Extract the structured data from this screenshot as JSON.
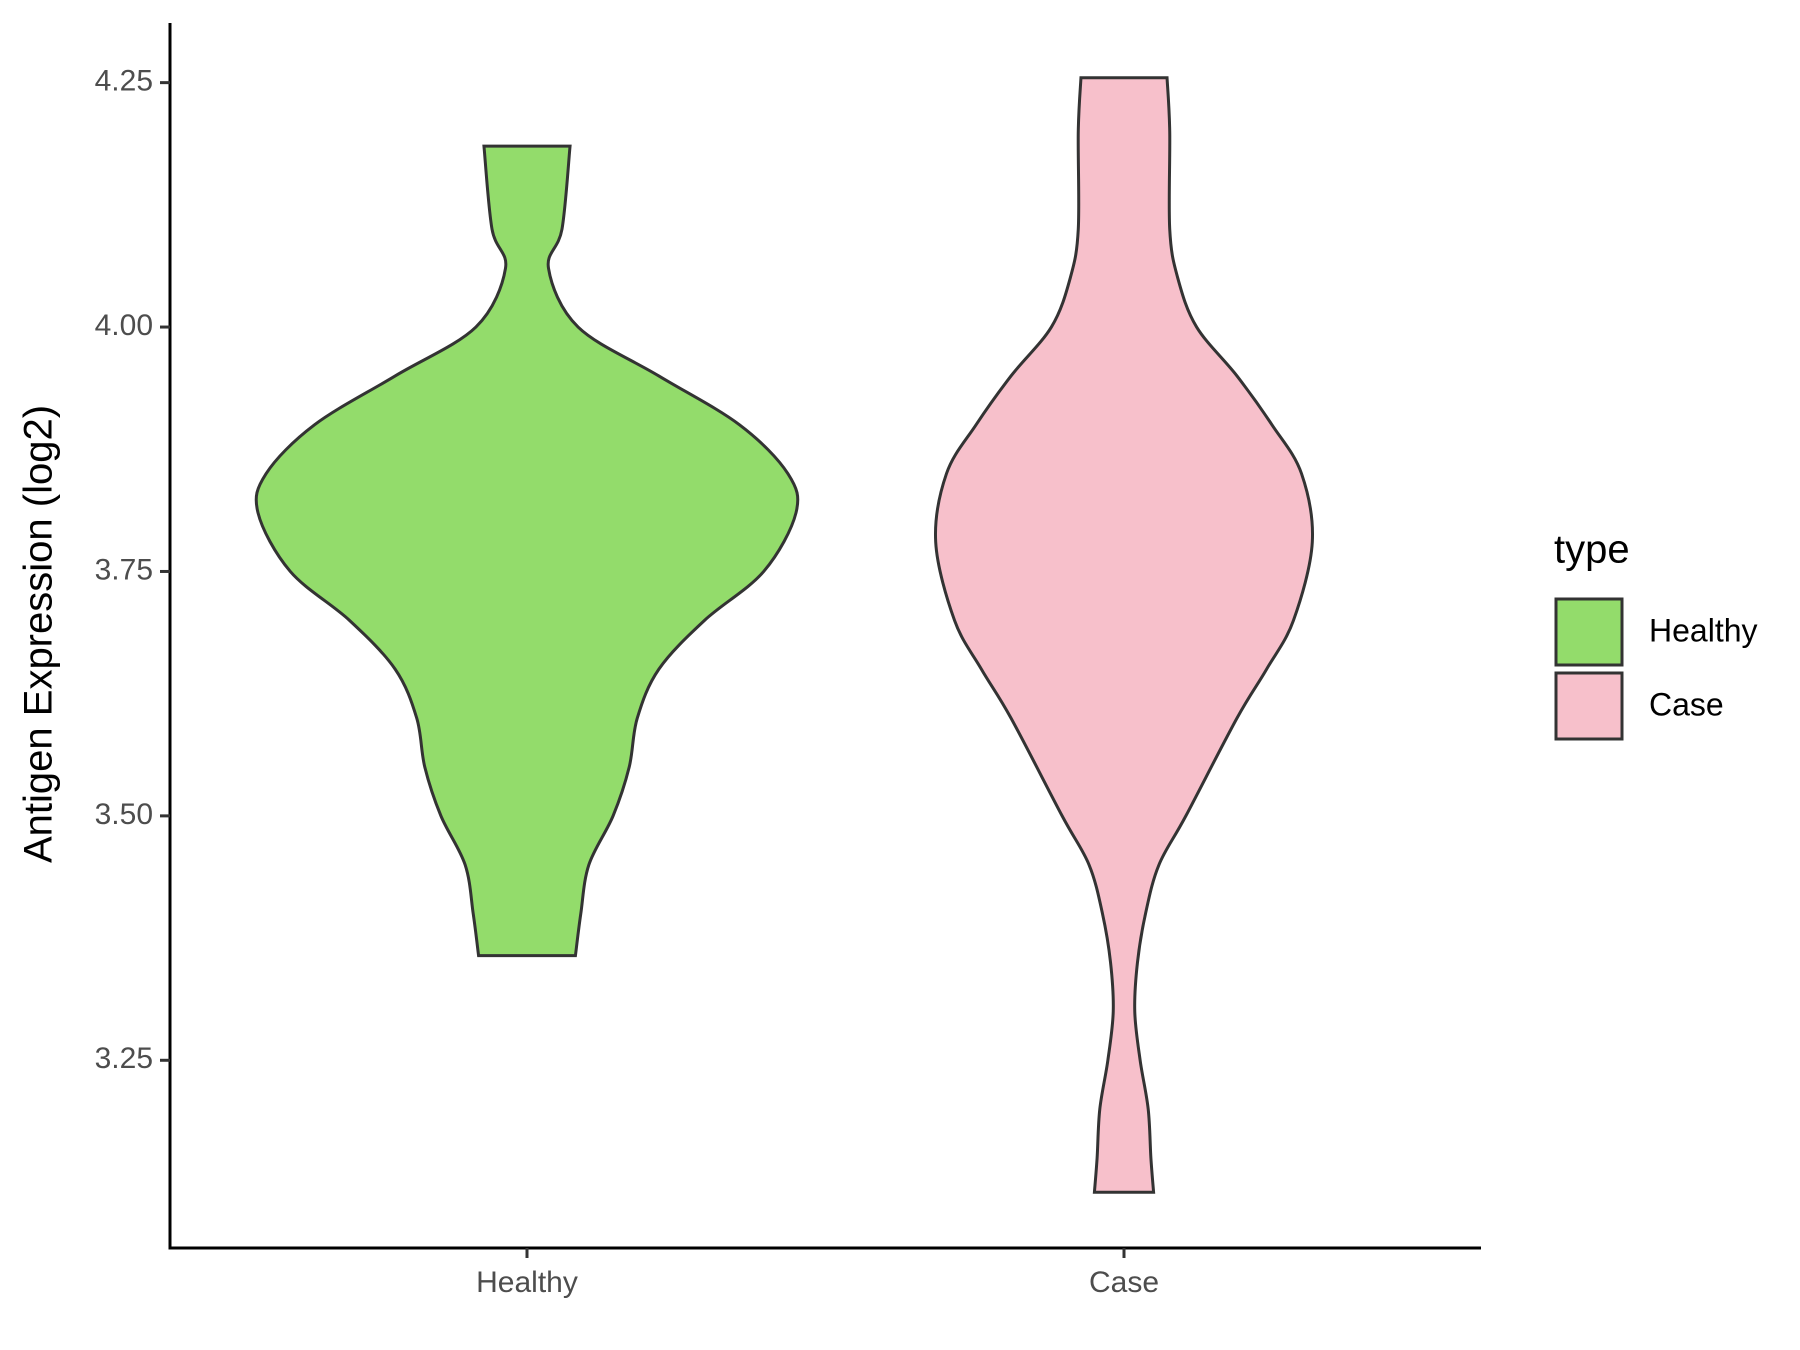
{
  "chart_data": {
    "type": "violin",
    "y_label": "Antigen Expression (log2)",
    "categories": [
      "Healthy",
      "Case"
    ],
    "legend_title": "type",
    "legend_position": "right",
    "ylim": [
      3.058,
      4.311
    ],
    "yticks": [
      {
        "value": 3.25,
        "label": "3.25"
      },
      {
        "value": 3.5,
        "label": "3.50"
      },
      {
        "value": 3.75,
        "label": "3.75"
      },
      {
        "value": 4.0,
        "label": "4.00"
      },
      {
        "value": 4.25,
        "label": "4.25"
      }
    ],
    "series": [
      {
        "name": "Healthy",
        "color": "#93dc6b",
        "y": [
          3.357,
          3.4,
          3.45,
          3.5,
          3.55,
          3.6,
          3.65,
          3.7,
          3.75,
          3.81,
          3.85,
          3.9,
          3.95,
          4.0,
          4.06,
          4.1,
          4.185
        ],
        "widths": [
          0.18,
          0.2,
          0.23,
          0.32,
          0.38,
          0.41,
          0.49,
          0.66,
          0.88,
          1.0,
          0.97,
          0.79,
          0.49,
          0.19,
          0.08,
          0.13,
          0.16
        ]
      },
      {
        "name": "Case",
        "color": "#f7c0cb",
        "y": [
          3.115,
          3.15,
          3.2,
          3.25,
          3.3,
          3.35,
          3.4,
          3.45,
          3.5,
          3.6,
          3.65,
          3.7,
          3.78,
          3.85,
          3.9,
          3.95,
          4.0,
          4.05,
          4.1,
          4.2,
          4.255
        ],
        "widths": [
          0.11,
          0.1,
          0.09,
          0.06,
          0.04,
          0.05,
          0.08,
          0.13,
          0.23,
          0.42,
          0.53,
          0.63,
          0.7,
          0.66,
          0.55,
          0.42,
          0.27,
          0.2,
          0.17,
          0.17,
          0.16
        ]
      }
    ]
  }
}
